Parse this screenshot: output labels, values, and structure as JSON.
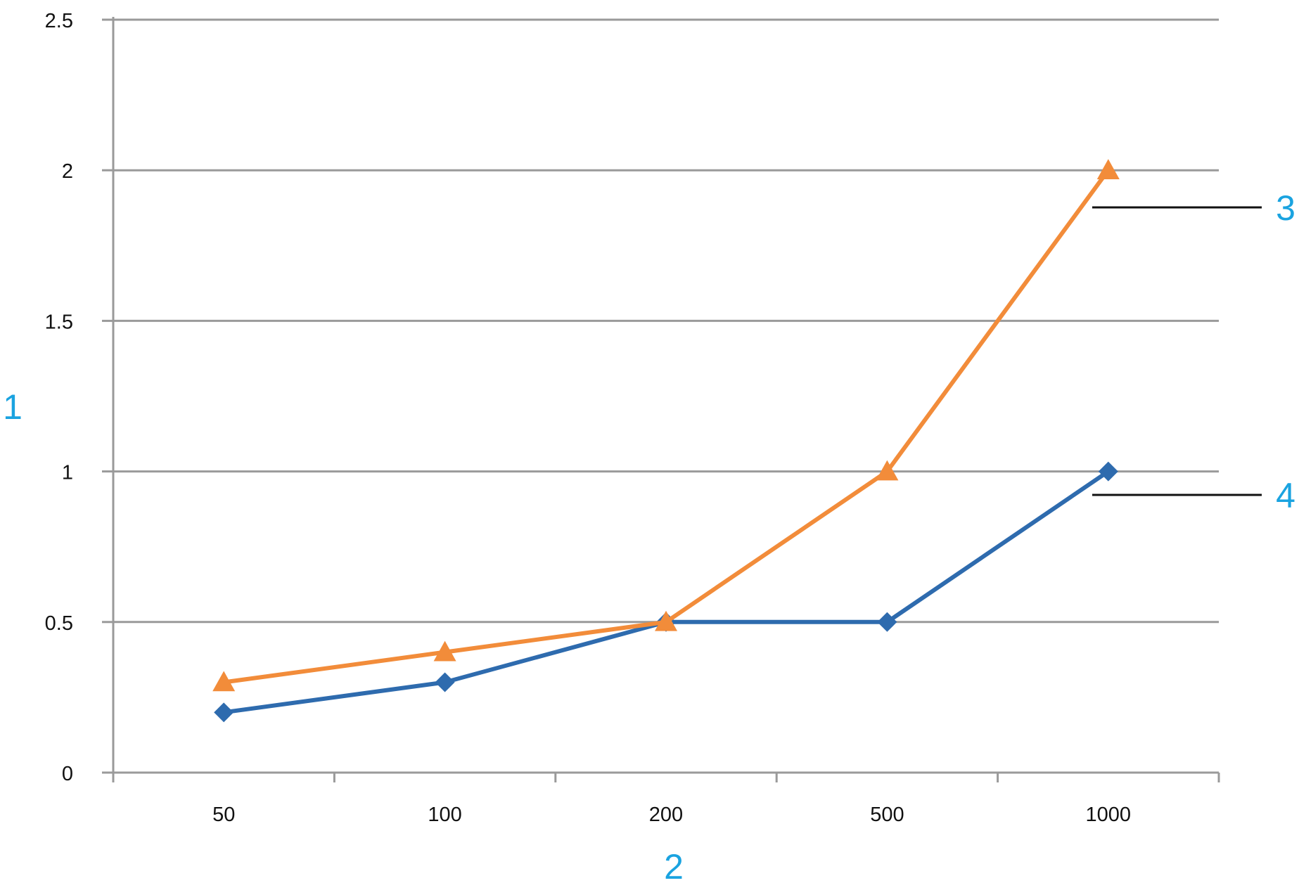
{
  "chart_data": {
    "type": "line",
    "categories": [
      "50",
      "100",
      "200",
      "500",
      "1000"
    ],
    "ylim": [
      0,
      2.5
    ],
    "yticks": [
      "0",
      "0.5",
      "1",
      "1.5",
      "2",
      "2.5"
    ],
    "grid": "horizontal",
    "legend": "none",
    "series": [
      {
        "color": "#F28C3A",
        "marker": "triangle",
        "values": [
          0.3,
          0.4,
          0.5,
          1.0,
          2.0
        ]
      },
      {
        "color": "#2E6BAE",
        "marker": "diamond",
        "values": [
          0.2,
          0.3,
          0.5,
          0.5,
          1.0
        ]
      }
    ],
    "ylabel": "1",
    "xlabel": "2",
    "callouts": [
      {
        "label": "3",
        "series_index": 0
      },
      {
        "label": "4",
        "series_index": 1
      }
    ]
  },
  "colors": {
    "axis": "#9A9A9A",
    "grid": "#9A9A9A",
    "callout_text": "#1AA3E0",
    "callout_line": "#111111"
  }
}
